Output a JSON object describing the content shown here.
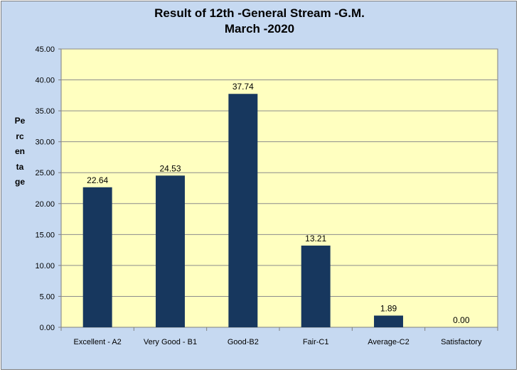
{
  "chart_data": {
    "type": "bar",
    "title_lines": [
      "Result of 12th -General Stream -G.M.",
      "March -2020"
    ],
    "xlabel": "",
    "ylabel": "Percentage",
    "categories": [
      "Excellent - A2",
      "Very Good - B1",
      "Good-B2",
      "Fair-C1",
      "Average-C2",
      "Satisfactory"
    ],
    "values": [
      22.64,
      24.53,
      37.74,
      13.21,
      1.89,
      0.0
    ],
    "value_labels": [
      "22.64",
      "24.53",
      "37.74",
      "13.21",
      "1.89",
      "0.00"
    ],
    "ylim": [
      0,
      45
    ],
    "yticks": [
      "0.00",
      "5.00",
      "10.00",
      "15.00",
      "20.00",
      "25.00",
      "30.00",
      "35.00",
      "40.00",
      "45.00"
    ],
    "grid": true,
    "legend": "none"
  },
  "colors": {
    "bar": "#17375e",
    "plot_background": "#ffffc0",
    "chart_background": "#c6d9f1",
    "gridline": "#8c8c8c"
  }
}
